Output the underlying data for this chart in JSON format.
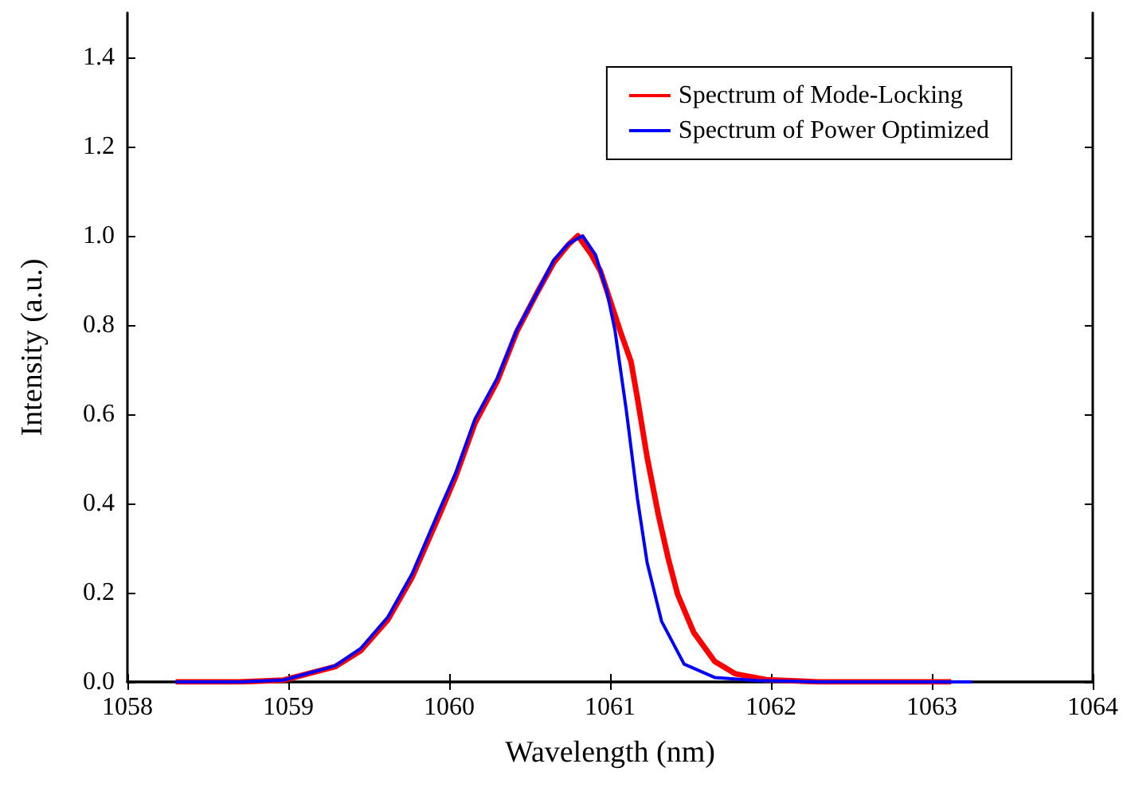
{
  "chart_data": {
    "type": "line",
    "xlabel": "Wavelength (nm)",
    "ylabel": "Intensity (a.u.)",
    "xlim": [
      1058,
      1064
    ],
    "xticks": [
      1058,
      1059,
      1060,
      1061,
      1062,
      1063,
      1064
    ],
    "ylim": [
      0,
      1.5
    ],
    "yticks": [
      {
        "value": 0,
        "label": "0.0"
      },
      {
        "value": 0.2,
        "label": "0.2"
      },
      {
        "value": 0.4,
        "label": "0.4"
      },
      {
        "value": 0.6,
        "label": "0.6"
      },
      {
        "value": 0.8,
        "label": "0.8"
      },
      {
        "value": 1.0,
        "label": "1.0"
      },
      {
        "value": 1.2,
        "label": "1.2"
      },
      {
        "value": 1.4,
        "label": "1.4"
      }
    ],
    "grid": false,
    "legend": "top right",
    "marker": "none",
    "line_style": "solid",
    "series": [
      {
        "name": "Spectrum of Mode-Locking",
        "color": "#ff0000",
        "x": [
          1058.3,
          1058.7,
          1058.97,
          1059.29,
          1059.45,
          1059.62,
          1059.77,
          1059.94,
          1060.04,
          1060.16,
          1060.3,
          1060.42,
          1060.55,
          1060.65,
          1060.74,
          1060.8,
          1060.88,
          1060.94,
          1061.07,
          1061.13,
          1061.17,
          1061.23,
          1061.3,
          1061.36,
          1061.42,
          1061.52,
          1061.65,
          1061.78,
          1061.97,
          1062.3,
          1063.12
        ],
        "values": [
          0,
          0,
          0.004,
          0.034,
          0.07,
          0.14,
          0.235,
          0.375,
          0.46,
          0.58,
          0.675,
          0.785,
          0.875,
          0.94,
          0.98,
          1.0,
          0.96,
          0.921,
          0.779,
          0.718,
          0.636,
          0.504,
          0.375,
          0.279,
          0.196,
          0.111,
          0.046,
          0.018,
          0.005,
          0,
          0
        ]
      },
      {
        "name": "Spectrum of Power Optimized",
        "color": "#0000ff",
        "x": [
          1058.3,
          1058.7,
          1058.97,
          1059.29,
          1059.45,
          1059.62,
          1059.77,
          1059.94,
          1060.04,
          1060.16,
          1060.3,
          1060.42,
          1060.55,
          1060.65,
          1060.74,
          1060.83,
          1060.91,
          1060.98,
          1061.03,
          1061.1,
          1061.17,
          1061.23,
          1061.32,
          1061.46,
          1061.65,
          1061.91,
          1062.3,
          1063.25
        ],
        "values": [
          0,
          0,
          0.004,
          0.036,
          0.075,
          0.146,
          0.243,
          0.386,
          0.468,
          0.589,
          0.682,
          0.789,
          0.875,
          0.946,
          0.982,
          1.0,
          0.957,
          0.875,
          0.789,
          0.611,
          0.411,
          0.268,
          0.136,
          0.04,
          0.01,
          0.003,
          0,
          0
        ]
      }
    ]
  }
}
